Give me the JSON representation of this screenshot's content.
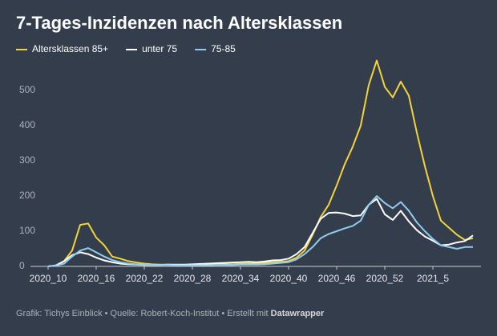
{
  "chart_data": {
    "type": "line",
    "title": "7-Tages-Inzidenzen nach Altersklassen",
    "categories": [
      "2020_10",
      null,
      null,
      null,
      null,
      null,
      "2020_16",
      null,
      null,
      null,
      null,
      null,
      "2020_22",
      null,
      null,
      null,
      null,
      null,
      "2020_28",
      null,
      null,
      null,
      null,
      null,
      "2020_34",
      null,
      null,
      null,
      null,
      null,
      "2020_40",
      null,
      null,
      null,
      null,
      null,
      "2020_46",
      null,
      null,
      null,
      null,
      null,
      "2020_52",
      null,
      null,
      null,
      null,
      null,
      "2021_5",
      null,
      null,
      null,
      null,
      null
    ],
    "series": [
      {
        "name": "Altersklassen 85+",
        "color": "#f4d33b",
        "values": [
          0,
          3,
          15,
          45,
          118,
          122,
          82,
          60,
          28,
          22,
          15,
          11,
          8,
          6,
          5,
          5,
          4,
          4,
          4,
          5,
          5,
          5,
          6,
          6,
          7,
          8,
          8,
          10,
          12,
          13,
          15,
          25,
          45,
          90,
          140,
          175,
          230,
          290,
          340,
          400,
          515,
          585,
          510,
          480,
          525,
          485,
          380,
          285,
          200,
          130,
          110,
          90,
          75,
          80
        ]
      },
      {
        "name": "unter 75",
        "color": "#ffffff",
        "values": [
          0,
          3,
          15,
          32,
          40,
          35,
          25,
          17,
          12,
          8,
          6,
          5,
          4,
          4,
          4,
          5,
          5,
          5,
          6,
          7,
          8,
          9,
          10,
          11,
          12,
          13,
          12,
          14,
          17,
          18,
          22,
          35,
          55,
          95,
          135,
          152,
          153,
          150,
          143,
          145,
          175,
          192,
          148,
          132,
          158,
          128,
          103,
          85,
          73,
          60,
          62,
          68,
          72,
          88
        ]
      },
      {
        "name": "75-85",
        "color": "#8fcdf1",
        "values": [
          0,
          2,
          8,
          28,
          45,
          52,
          40,
          28,
          18,
          12,
          8,
          6,
          5,
          4,
          4,
          4,
          3,
          3,
          3,
          3,
          3,
          4,
          4,
          4,
          5,
          5,
          5,
          6,
          8,
          10,
          12,
          20,
          35,
          55,
          80,
          92,
          100,
          108,
          115,
          130,
          175,
          200,
          180,
          165,
          183,
          158,
          125,
          100,
          78,
          60,
          55,
          50,
          55,
          55
        ]
      }
    ],
    "ylim": [
      0,
      600
    ],
    "yticks": [
      0,
      100,
      200,
      300,
      400,
      500
    ],
    "grid": false
  },
  "footer": {
    "text": "Grafik: Tichys Einblick • Quelle: Robert-Koch-Institut • Erstellt mit ",
    "brand": "Datawrapper"
  }
}
